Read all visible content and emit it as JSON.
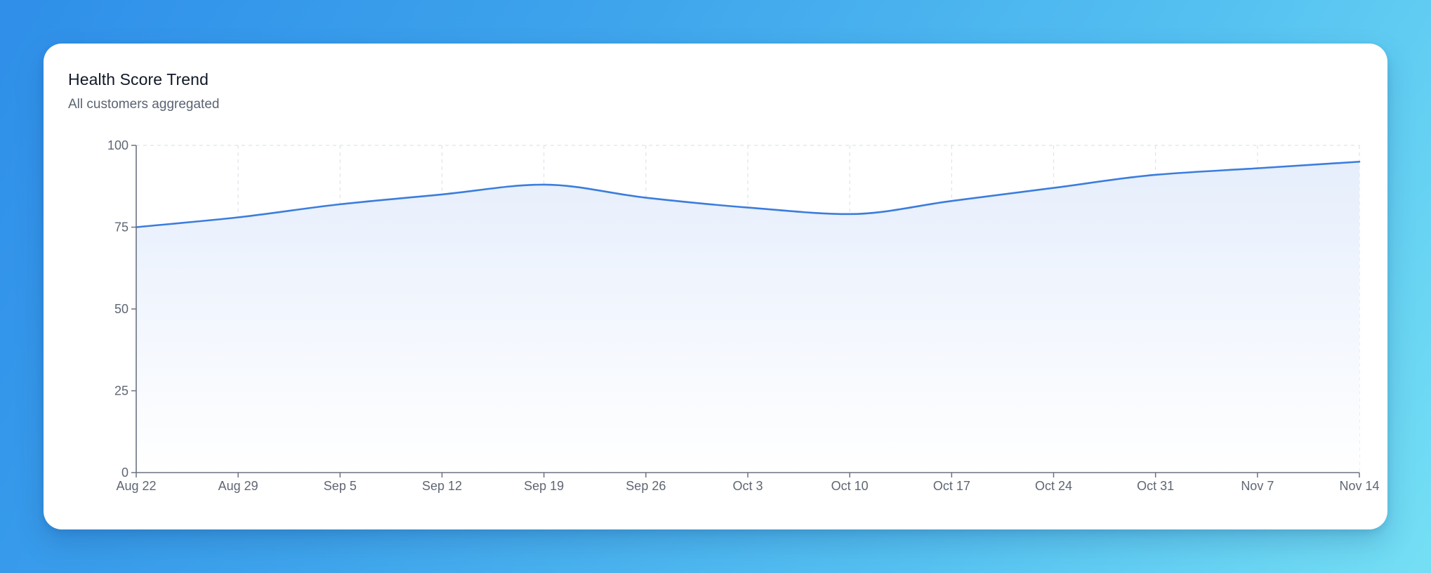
{
  "card": {
    "title": "Health Score Trend",
    "subtitle": "All customers aggregated"
  },
  "colors": {
    "line": "#3b7ddd",
    "fill_top": "#e6eefc",
    "fill_bottom": "#ffffff",
    "grid": "#dfe3ea",
    "axis": "#6b7280"
  },
  "chart_data": {
    "type": "area",
    "title": "Health Score Trend",
    "subtitle": "All customers aggregated",
    "categories": [
      "Aug 22",
      "Aug 29",
      "Sep 5",
      "Sep 12",
      "Sep 19",
      "Sep 26",
      "Oct 3",
      "Oct 10",
      "Oct 17",
      "Oct 24",
      "Oct 31",
      "Nov 7",
      "Nov 14"
    ],
    "series": [
      {
        "values": [
          75,
          78,
          82,
          85,
          88,
          84,
          81,
          79,
          83,
          87,
          91,
          93,
          95
        ]
      }
    ],
    "ylim": [
      0,
      100
    ],
    "yticks": [
      "0",
      "25",
      "50",
      "75",
      "100"
    ],
    "grid": true,
    "legend": "none"
  }
}
